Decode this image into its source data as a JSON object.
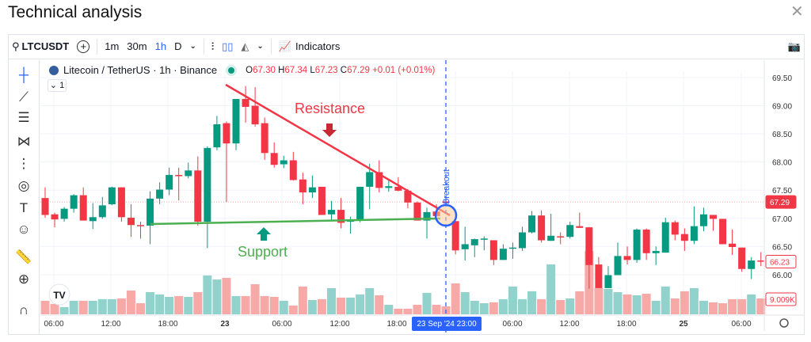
{
  "title": "Technical analysis",
  "close_icon": "close-icon",
  "toolbar": {
    "symbol": "LTCUSDT",
    "intervals": [
      "1m",
      "30m",
      "1h",
      "D"
    ],
    "active_interval": "1h",
    "indicators": "Indicators"
  },
  "legend": {
    "name": "Litecoin / TetherUS · 1h · Binance",
    "o_label": "O",
    "o": "67.30",
    "h_label": "H",
    "h": "67.34",
    "l_label": "L",
    "l": "67.23",
    "c_label": "C",
    "c": "67.29",
    "change": "+0.01 (+0.01%)",
    "collapse": "1"
  },
  "colors": {
    "up": "#089981",
    "down": "#f23645",
    "up_vol": "#92d2cc",
    "down_vol": "#f7a9a7",
    "resistance": "#f23645",
    "support": "#4caf50",
    "breakout": "#2962ff"
  },
  "annotations": {
    "resistance": "Resistance",
    "support": "Support",
    "breakout": "Breakout"
  },
  "chart_data": {
    "type": "candlestick",
    "y_ticks": [
      "69.50",
      "69.00",
      "68.50",
      "68.00",
      "67.50",
      "67.00",
      "66.50",
      "66.00"
    ],
    "ylim": [
      65.85,
      69.62
    ],
    "x_ticks": [
      "06:00",
      "12:00",
      "18:00",
      "23",
      "06:00",
      "12:00",
      "18:00",
      "06:00",
      "12:00",
      "18:00",
      "25",
      "06:00"
    ],
    "crosshair_time": "23 Sep '24  23:00",
    "last_price_label": "67.29",
    "current_price_label": "66.23",
    "volume_label": "9.009K",
    "ohlc": [
      [
        67.36,
        67.55,
        67.01,
        67.06
      ],
      [
        67.07,
        67.1,
        66.84,
        66.98
      ],
      [
        66.99,
        67.2,
        66.94,
        67.17
      ],
      [
        67.17,
        67.43,
        67.1,
        67.41
      ],
      [
        67.41,
        67.55,
        66.96,
        66.96
      ],
      [
        66.95,
        67.27,
        66.81,
        67.02
      ],
      [
        67.02,
        67.38,
        66.99,
        67.23
      ],
      [
        67.25,
        67.56,
        67.23,
        67.55
      ],
      [
        67.55,
        67.55,
        66.94,
        67.02
      ],
      [
        67.01,
        67.25,
        66.67,
        66.88
      ],
      [
        66.88,
        66.94,
        66.64,
        66.86
      ],
      [
        66.87,
        67.48,
        66.54,
        67.35
      ],
      [
        67.35,
        67.64,
        67.25,
        67.51
      ],
      [
        67.51,
        67.9,
        67.41,
        67.77
      ],
      [
        67.77,
        67.9,
        67.32,
        67.75
      ],
      [
        67.75,
        67.99,
        67.71,
        67.85
      ],
      [
        67.85,
        68.1,
        66.87,
        66.94
      ],
      [
        66.94,
        68.28,
        66.47,
        68.25
      ],
      [
        68.26,
        68.82,
        68.21,
        68.67
      ],
      [
        68.69,
        68.72,
        67.29,
        68.33
      ],
      [
        68.33,
        69.12,
        68.21,
        69.12
      ],
      [
        69.12,
        69.35,
        68.7,
        68.98
      ],
      [
        69.0,
        69.33,
        68.63,
        68.67
      ],
      [
        68.69,
        68.79,
        68.04,
        68.16
      ],
      [
        68.16,
        68.35,
        67.9,
        67.95
      ],
      [
        67.96,
        68.11,
        67.89,
        68.03
      ],
      [
        68.03,
        68.18,
        67.67,
        67.68
      ],
      [
        67.69,
        67.81,
        67.25,
        67.46
      ],
      [
        67.46,
        67.76,
        67.36,
        67.55
      ],
      [
        67.56,
        67.56,
        67.06,
        67.06
      ],
      [
        67.07,
        67.31,
        66.96,
        67.15
      ],
      [
        67.15,
        67.36,
        66.82,
        66.92
      ],
      [
        66.94,
        67.03,
        66.73,
        66.96
      ],
      [
        66.96,
        67.56,
        66.93,
        67.56
      ],
      [
        67.56,
        67.97,
        67.16,
        67.82
      ],
      [
        67.82,
        68.03,
        67.46,
        67.54
      ],
      [
        67.54,
        67.69,
        67.47,
        67.57
      ],
      [
        67.56,
        67.73,
        67.48,
        67.49
      ],
      [
        67.49,
        67.52,
        67.18,
        67.28
      ],
      [
        67.28,
        67.3,
        66.96,
        66.96
      ],
      [
        66.96,
        67.19,
        66.64,
        67.11
      ],
      [
        67.12,
        67.25,
        67.04,
        67.04
      ],
      [
        67.3,
        67.34,
        67.23,
        67.29
      ],
      [
        66.95,
        66.95,
        66.36,
        66.43
      ],
      [
        66.45,
        66.85,
        66.25,
        66.54
      ],
      [
        66.52,
        66.64,
        66.31,
        66.63
      ],
      [
        66.62,
        66.68,
        66.43,
        66.64
      ],
      [
        66.61,
        66.61,
        66.17,
        66.26
      ],
      [
        66.26,
        66.54,
        66.26,
        66.46
      ],
      [
        66.46,
        66.57,
        66.28,
        66.48
      ],
      [
        66.47,
        66.85,
        66.42,
        66.75
      ],
      [
        66.75,
        67.13,
        66.73,
        67.05
      ],
      [
        67.05,
        67.14,
        66.57,
        66.61
      ],
      [
        66.6,
        67.08,
        66.6,
        66.69
      ],
      [
        66.68,
        66.75,
        66.54,
        66.67
      ],
      [
        66.67,
        66.94,
        66.64,
        66.88
      ],
      [
        66.86,
        67.1,
        66.83,
        66.83
      ],
      [
        66.84,
        66.84,
        65.75,
        66.17
      ],
      [
        66.18,
        66.31,
        65.76,
        65.76
      ],
      [
        65.76,
        66.15,
        65.76,
        65.99
      ],
      [
        65.99,
        66.57,
        65.99,
        66.33
      ],
      [
        66.33,
        66.5,
        66.18,
        66.26
      ],
      [
        66.26,
        66.82,
        66.21,
        66.8
      ],
      [
        66.8,
        66.82,
        66.26,
        66.38
      ],
      [
        66.38,
        66.5,
        66.17,
        66.42
      ],
      [
        66.39,
        67.01,
        66.39,
        66.93
      ],
      [
        66.93,
        66.96,
        66.61,
        66.71
      ],
      [
        66.72,
        66.82,
        66.42,
        66.6
      ],
      [
        66.6,
        67.21,
        66.54,
        66.86
      ],
      [
        66.86,
        67.19,
        66.77,
        67.07
      ],
      [
        67.06,
        67.06,
        66.78,
        66.99
      ],
      [
        66.99,
        66.99,
        66.54,
        66.54
      ],
      [
        66.55,
        66.8,
        66.35,
        66.49
      ],
      [
        66.48,
        66.48,
        66.05,
        66.1
      ],
      [
        66.1,
        66.31,
        65.92,
        66.25
      ],
      [
        66.25,
        66.4,
        66.15,
        66.23
      ]
    ],
    "volume_k": [
      7.7,
      5.9,
      4.1,
      7.7,
      7.7,
      7.7,
      8.6,
      8.6,
      9.0,
      13.5,
      6.3,
      12.6,
      11.3,
      9.9,
      10.4,
      9.9,
      12.6,
      22.1,
      19.8,
      20.7,
      10.4,
      10.4,
      17.1,
      10.4,
      9.9,
      7.7,
      5.0,
      15.8,
      8.1,
      8.6,
      14.9,
      9.5,
      9.5,
      11.3,
      14.9,
      10.8,
      5.4,
      3.2,
      3.2,
      5.4,
      12.2,
      5.4,
      4.5,
      17.6,
      12.6,
      7.7,
      6.3,
      6.8,
      8.6,
      15.8,
      8.6,
      13.1,
      8.6,
      28.4,
      8.1,
      9.0,
      13.1,
      36.0,
      14.9,
      14.4,
      12.6,
      11.3,
      10.8,
      11.7,
      7.7,
      15.8,
      9.0,
      13.1,
      14.9,
      7.7,
      6.8,
      6.3,
      8.6,
      8.6,
      11.3,
      9.0
    ]
  }
}
